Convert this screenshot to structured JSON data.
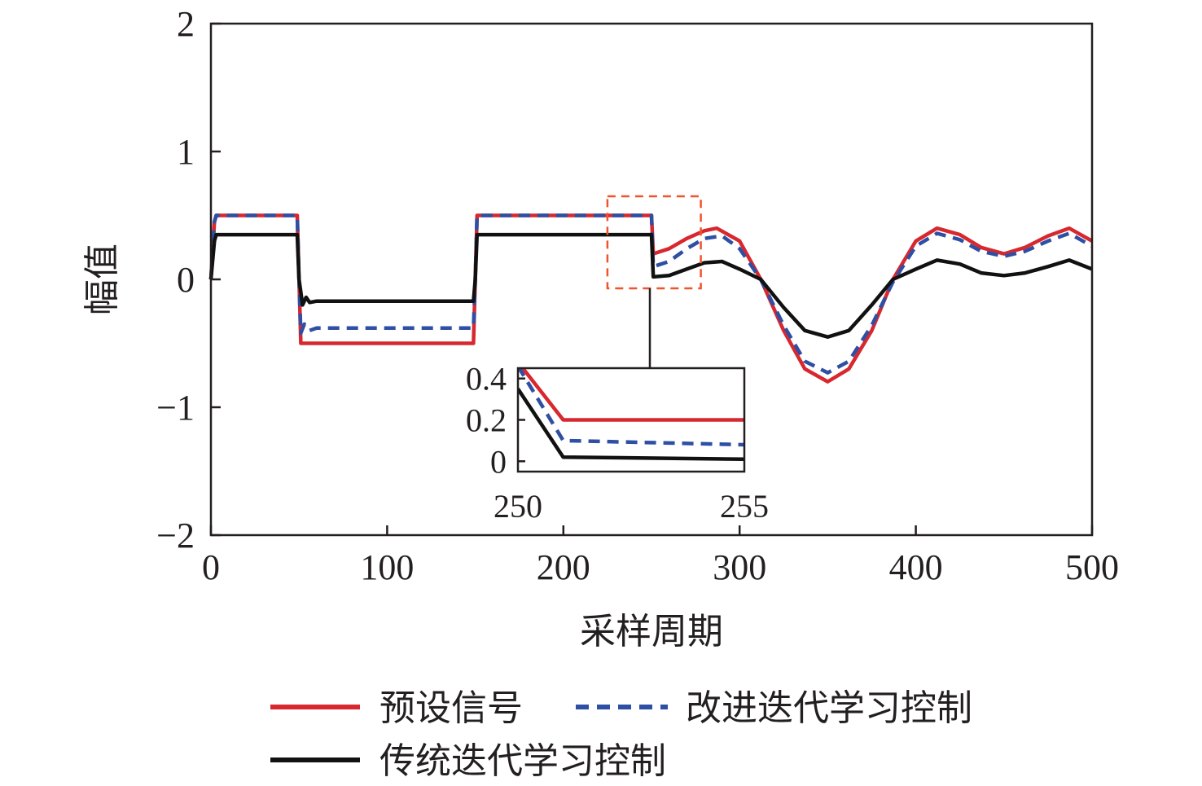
{
  "chart_data": {
    "type": "line",
    "xlabel": "采样周期",
    "ylabel": "幅值",
    "xlim": [
      0,
      500
    ],
    "ylim": [
      -2,
      2
    ],
    "xticks": [
      0,
      100,
      200,
      300,
      400,
      500
    ],
    "xtick_labels": [
      "0",
      "100",
      "200",
      "300",
      "400",
      "500"
    ],
    "yticks": [
      2,
      1,
      0,
      -1,
      -2
    ],
    "ytick_labels": [
      "2",
      "1",
      "0",
      "−1",
      "−2"
    ],
    "grid": false,
    "legend_position": "bottom",
    "series": [
      {
        "name": "预设信号",
        "color": "#d7282f",
        "dash": "solid",
        "x": [
          0,
          2,
          3,
          49,
          50,
          51,
          149,
          150,
          151,
          250,
          251,
          260,
          270,
          280,
          287,
          300,
          312,
          325,
          337,
          350,
          362,
          375,
          387,
          400,
          412,
          425,
          437,
          450,
          462,
          475,
          487,
          500
        ],
        "y": [
          0,
          0.45,
          0.5,
          0.5,
          0,
          -0.5,
          -0.5,
          0,
          0.5,
          0.5,
          0.2,
          0.24,
          0.32,
          0.38,
          0.4,
          0.3,
          0,
          -0.4,
          -0.7,
          -0.8,
          -0.7,
          -0.4,
          0,
          0.3,
          0.4,
          0.35,
          0.25,
          0.2,
          0.25,
          0.34,
          0.4,
          0.3
        ]
      },
      {
        "name": "改进迭代学习控制",
        "color": "#2e4fa3",
        "dash": "dashed",
        "x": [
          0,
          2,
          3,
          49,
          50,
          51,
          53,
          56,
          60,
          149,
          150,
          151,
          250,
          251,
          260,
          270,
          280,
          290,
          300,
          312,
          325,
          337,
          350,
          362,
          375,
          387,
          400,
          412,
          425,
          437,
          450,
          462,
          475,
          487,
          500
        ],
        "y": [
          0,
          0.45,
          0.5,
          0.5,
          0,
          -0.42,
          -0.35,
          -0.4,
          -0.38,
          -0.38,
          0,
          0.5,
          0.5,
          0.1,
          0.14,
          0.24,
          0.32,
          0.34,
          0.24,
          0,
          -0.36,
          -0.64,
          -0.73,
          -0.64,
          -0.36,
          -0.02,
          0.26,
          0.36,
          0.31,
          0.22,
          0.18,
          0.22,
          0.3,
          0.36,
          0.26
        ]
      },
      {
        "name": "传统迭代学习控制",
        "color": "#111111",
        "dash": "solid",
        "x": [
          0,
          2,
          3,
          49,
          50,
          51,
          52,
          54,
          56,
          60,
          149,
          150,
          151,
          250,
          251,
          260,
          270,
          280,
          290,
          300,
          312,
          325,
          337,
          350,
          362,
          375,
          387,
          400,
          412,
          425,
          437,
          450,
          462,
          475,
          487,
          500
        ],
        "y": [
          0,
          0.3,
          0.35,
          0.35,
          0,
          -0.1,
          -0.2,
          -0.14,
          -0.18,
          -0.17,
          -0.17,
          0,
          0.35,
          0.35,
          0.02,
          0.03,
          0.08,
          0.13,
          0.14,
          0.08,
          0,
          -0.22,
          -0.4,
          -0.45,
          -0.4,
          -0.2,
          0,
          0.08,
          0.15,
          0.12,
          0.05,
          0.03,
          0.05,
          0.1,
          0.15,
          0.08
        ]
      }
    ],
    "inset": {
      "xlim": [
        250,
        255
      ],
      "ylim": [
        -0.05,
        0.45
      ],
      "xtick_labels": [
        "250",
        "255"
      ],
      "yticks": [
        0.4,
        0.2,
        0
      ],
      "ytick_labels": [
        "0.4",
        "0.2",
        "0"
      ],
      "zoom_region_x": [
        225,
        278
      ],
      "zoom_region_y": [
        -0.07,
        0.65
      ],
      "zoom_box_color": "#f0542d",
      "series": [
        {
          "name": "预设信号",
          "color": "#d7282f",
          "dash": "solid",
          "x": [
            250,
            251,
            255
          ],
          "y": [
            0.48,
            0.2,
            0.2
          ]
        },
        {
          "name": "改进迭代学习控制",
          "color": "#2e4fa3",
          "dash": "dashed",
          "x": [
            250,
            251,
            255
          ],
          "y": [
            0.46,
            0.1,
            0.08
          ]
        },
        {
          "name": "传统迭代学习控制",
          "color": "#111111",
          "dash": "solid",
          "x": [
            250,
            251,
            255
          ],
          "y": [
            0.35,
            0.02,
            0.01
          ]
        }
      ]
    }
  }
}
